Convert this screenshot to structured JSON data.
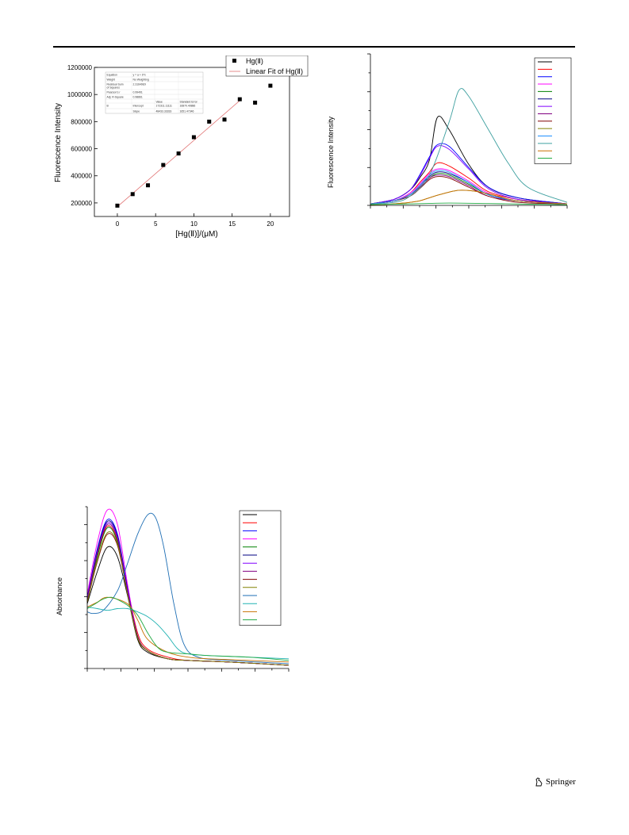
{
  "footer": {
    "publisher": "Springer"
  },
  "chart_data": [
    {
      "type": "scatter",
      "ylabel": "Fluorescence Intensity",
      "xlabel": "[Hg(Ⅱ)]/(μM)",
      "xlim": [
        -3,
        22.5
      ],
      "ylim": [
        100000,
        1200000
      ],
      "x_ticks": [
        0,
        5,
        10,
        15,
        20
      ],
      "y_ticks": [
        200000,
        400000,
        600000,
        800000,
        1000000,
        1200000
      ],
      "x_tick_labels": [
        "0",
        "5",
        "10",
        "15",
        "20"
      ],
      "y_tick_labels": [
        "200000",
        "400000",
        "600000",
        "800000",
        "1000000",
        "1200000"
      ],
      "legend_position": "top-right",
      "legend": [
        "Hg(Ⅱ)",
        "Linear Fit of Hg(Ⅱ)"
      ],
      "series": [
        {
          "name": "Hg(Ⅱ)",
          "x": [
            0,
            2,
            4,
            6,
            8,
            10,
            12,
            14,
            16,
            18,
            20
          ],
          "y": [
            180000,
            265000,
            330000,
            480000,
            565000,
            685000,
            800000,
            815000,
            965000,
            940000,
            1065000
          ]
        }
      ],
      "fit_line": {
        "x": [
          0,
          16
        ],
        "y": [
          172000,
          955000
        ]
      },
      "stats_table": [
        [
          "Equation",
          "y = a + b*x",
          "",
          ""
        ],
        [
          "Weight",
          "No Weighting",
          "",
          ""
        ],
        [
          "Residual Sum of Squares",
          "2.31649E9",
          "",
          ""
        ],
        [
          "Pearson's r",
          "0.99491",
          "",
          ""
        ],
        [
          "Adj. R-Square",
          "0.98861",
          "",
          ""
        ],
        [
          "",
          "",
          "Value",
          "Standard Error"
        ],
        [
          "B",
          "Intercept",
          "172311.11111",
          "16870.40886"
        ],
        [
          "",
          "Slope",
          "48433.33333",
          "1651.47346"
        ]
      ]
    },
    {
      "type": "line",
      "ylabel": "Fluorescence Intensity",
      "xlim": [
        0,
        1
      ],
      "ylim": [
        0,
        1
      ],
      "grid": false,
      "legend_position": "top-right",
      "colors": [
        "#000000",
        "#ff0000",
        "#0000ff",
        "#ff00ff",
        "#008000",
        "#000080",
        "#8000ff",
        "#800080",
        "#800000",
        "#808000",
        "#1e90ff",
        "#3fa0a0",
        "#c87000",
        "#22aa44"
      ],
      "series": [
        {
          "x": [
            0.0,
            0.12,
            0.2,
            0.25,
            0.3,
            0.34,
            0.4,
            0.5,
            0.6,
            0.75,
            1.0
          ],
          "y": [
            0.01,
            0.04,
            0.1,
            0.18,
            0.3,
            0.58,
            0.5,
            0.27,
            0.12,
            0.05,
            0.01
          ]
        },
        {
          "x": [
            0.0,
            0.12,
            0.2,
            0.25,
            0.3,
            0.34,
            0.4,
            0.5,
            0.6,
            0.75,
            1.0
          ],
          "y": [
            0.01,
            0.03,
            0.08,
            0.15,
            0.22,
            0.28,
            0.26,
            0.18,
            0.09,
            0.04,
            0.01
          ]
        },
        {
          "x": [
            0.0,
            0.12,
            0.2,
            0.25,
            0.3,
            0.34,
            0.4,
            0.5,
            0.6,
            0.75,
            1.0
          ],
          "y": [
            0.01,
            0.04,
            0.1,
            0.2,
            0.32,
            0.4,
            0.39,
            0.25,
            0.12,
            0.05,
            0.01
          ]
        },
        {
          "x": [
            0.0,
            0.12,
            0.2,
            0.25,
            0.3,
            0.34,
            0.4,
            0.5,
            0.6,
            0.75,
            1.0
          ],
          "y": [
            0.01,
            0.03,
            0.08,
            0.14,
            0.21,
            0.24,
            0.23,
            0.16,
            0.08,
            0.03,
            0.01
          ]
        },
        {
          "x": [
            0.0,
            0.12,
            0.2,
            0.25,
            0.3,
            0.34,
            0.4,
            0.5,
            0.6,
            0.75,
            1.0
          ],
          "y": [
            0.01,
            0.03,
            0.07,
            0.12,
            0.18,
            0.21,
            0.2,
            0.14,
            0.07,
            0.03,
            0.01
          ]
        },
        {
          "x": [
            0.0,
            0.12,
            0.2,
            0.25,
            0.3,
            0.34,
            0.4,
            0.5,
            0.6,
            0.75,
            1.0
          ],
          "y": [
            0.01,
            0.03,
            0.07,
            0.13,
            0.19,
            0.22,
            0.21,
            0.15,
            0.07,
            0.03,
            0.01
          ]
        },
        {
          "x": [
            0.0,
            0.12,
            0.2,
            0.25,
            0.3,
            0.34,
            0.4,
            0.5,
            0.6,
            0.75,
            1.0
          ],
          "y": [
            0.01,
            0.04,
            0.1,
            0.19,
            0.31,
            0.39,
            0.37,
            0.24,
            0.11,
            0.04,
            0.01
          ]
        },
        {
          "x": [
            0.0,
            0.12,
            0.2,
            0.25,
            0.3,
            0.34,
            0.4,
            0.5,
            0.6,
            0.75,
            1.0
          ],
          "y": [
            0.01,
            0.03,
            0.07,
            0.12,
            0.18,
            0.2,
            0.19,
            0.13,
            0.06,
            0.03,
            0.01
          ]
        },
        {
          "x": [
            0.0,
            0.12,
            0.2,
            0.25,
            0.3,
            0.34,
            0.4,
            0.5,
            0.6,
            0.75,
            1.0
          ],
          "y": [
            0.01,
            0.03,
            0.06,
            0.11,
            0.17,
            0.19,
            0.18,
            0.12,
            0.06,
            0.02,
            0.01
          ]
        },
        {
          "x": [
            0.0,
            0.12,
            0.2,
            0.25,
            0.3,
            0.35,
            0.45,
            0.55,
            0.65,
            0.75,
            1.0
          ],
          "y": [
            0.0,
            0.01,
            0.02,
            0.03,
            0.05,
            0.07,
            0.1,
            0.09,
            0.06,
            0.03,
            0.01
          ]
        },
        {
          "x": [
            0.0,
            0.12,
            0.2,
            0.25,
            0.3,
            0.34,
            0.4,
            0.5,
            0.6,
            0.75,
            1.0
          ],
          "y": [
            0.01,
            0.03,
            0.07,
            0.13,
            0.2,
            0.23,
            0.22,
            0.15,
            0.07,
            0.03,
            0.01
          ]
        },
        {
          "x": [
            0.0,
            0.12,
            0.2,
            0.3,
            0.4,
            0.45,
            0.5,
            0.6,
            0.7,
            0.8,
            1.0
          ],
          "y": [
            0.01,
            0.02,
            0.06,
            0.2,
            0.55,
            0.76,
            0.72,
            0.5,
            0.28,
            0.12,
            0.02
          ]
        },
        {
          "x": [
            0.0,
            0.12,
            0.2,
            0.25,
            0.3,
            0.35,
            0.45,
            0.55,
            0.65,
            0.75,
            1.0
          ],
          "y": [
            0.0,
            0.01,
            0.02,
            0.03,
            0.05,
            0.07,
            0.1,
            0.09,
            0.06,
            0.03,
            0.01
          ]
        },
        {
          "x": [
            0.0,
            0.2,
            0.4,
            0.6,
            0.8,
            1.0
          ],
          "y": [
            0.005,
            0.01,
            0.015,
            0.012,
            0.008,
            0.004
          ]
        }
      ]
    },
    {
      "type": "line",
      "ylabel": "Absorbance",
      "xlim": [
        0,
        1
      ],
      "ylim": [
        0,
        1
      ],
      "grid": false,
      "legend_position": "top-right",
      "colors": [
        "#000000",
        "#ff0000",
        "#0000ff",
        "#ff00ff",
        "#008000",
        "#000080",
        "#8000ff",
        "#800080",
        "#800000",
        "#808000",
        "#1e6eb4",
        "#20b2b2",
        "#c87000",
        "#22aa44"
      ],
      "series": [
        {
          "x": [
            0.0,
            0.05,
            0.1,
            0.15,
            0.2,
            0.25,
            0.3,
            0.4,
            0.5,
            0.7,
            1.0
          ],
          "y": [
            0.4,
            0.6,
            0.75,
            0.69,
            0.45,
            0.18,
            0.1,
            0.06,
            0.05,
            0.04,
            0.02
          ]
        },
        {
          "x": [
            0.0,
            0.05,
            0.1,
            0.15,
            0.2,
            0.25,
            0.3,
            0.4,
            0.5,
            0.7,
            1.0
          ],
          "y": [
            0.42,
            0.7,
            0.88,
            0.79,
            0.5,
            0.22,
            0.12,
            0.07,
            0.05,
            0.04,
            0.02
          ]
        },
        {
          "x": [
            0.0,
            0.05,
            0.1,
            0.15,
            0.2,
            0.25,
            0.3,
            0.4,
            0.5,
            0.7,
            1.0
          ],
          "y": [
            0.44,
            0.74,
            0.92,
            0.83,
            0.5,
            0.2,
            0.11,
            0.06,
            0.05,
            0.04,
            0.02
          ]
        },
        {
          "x": [
            0.0,
            0.05,
            0.1,
            0.15,
            0.2,
            0.25,
            0.3,
            0.4,
            0.5,
            0.7,
            1.0
          ],
          "y": [
            0.46,
            0.78,
            0.98,
            0.89,
            0.52,
            0.2,
            0.11,
            0.06,
            0.05,
            0.04,
            0.02
          ]
        },
        {
          "x": [
            0.0,
            0.05,
            0.1,
            0.15,
            0.2,
            0.25,
            0.3,
            0.4,
            0.5,
            0.7,
            1.0
          ],
          "y": [
            0.42,
            0.69,
            0.87,
            0.78,
            0.47,
            0.2,
            0.11,
            0.06,
            0.05,
            0.04,
            0.02
          ]
        },
        {
          "x": [
            0.0,
            0.05,
            0.1,
            0.15,
            0.2,
            0.25,
            0.3,
            0.4,
            0.5,
            0.7,
            1.0
          ],
          "y": [
            0.44,
            0.73,
            0.91,
            0.82,
            0.49,
            0.2,
            0.11,
            0.06,
            0.05,
            0.04,
            0.02
          ]
        },
        {
          "x": [
            0.0,
            0.05,
            0.1,
            0.15,
            0.2,
            0.25,
            0.3,
            0.4,
            0.5,
            0.7,
            1.0
          ],
          "y": [
            0.43,
            0.72,
            0.9,
            0.81,
            0.48,
            0.2,
            0.11,
            0.06,
            0.05,
            0.04,
            0.02
          ]
        },
        {
          "x": [
            0.0,
            0.05,
            0.1,
            0.15,
            0.2,
            0.25,
            0.3,
            0.4,
            0.5,
            0.7,
            1.0
          ],
          "y": [
            0.42,
            0.71,
            0.89,
            0.8,
            0.47,
            0.2,
            0.11,
            0.06,
            0.05,
            0.04,
            0.02
          ]
        },
        {
          "x": [
            0.0,
            0.05,
            0.1,
            0.15,
            0.2,
            0.25,
            0.3,
            0.4,
            0.5,
            0.7,
            1.0
          ],
          "y": [
            0.41,
            0.66,
            0.83,
            0.76,
            0.46,
            0.19,
            0.11,
            0.06,
            0.05,
            0.04,
            0.02
          ]
        },
        {
          "x": [
            0.0,
            0.05,
            0.1,
            0.15,
            0.2,
            0.25,
            0.3,
            0.4,
            0.5,
            0.7,
            1.0
          ],
          "y": [
            0.41,
            0.67,
            0.84,
            0.77,
            0.46,
            0.19,
            0.11,
            0.06,
            0.05,
            0.04,
            0.02
          ]
        },
        {
          "x": [
            0.0,
            0.03,
            0.08,
            0.15,
            0.2,
            0.25,
            0.3,
            0.34,
            0.38,
            0.43,
            0.48,
            0.55,
            0.7,
            1.0
          ],
          "y": [
            0.35,
            0.34,
            0.36,
            0.48,
            0.65,
            0.83,
            0.95,
            0.93,
            0.75,
            0.4,
            0.15,
            0.07,
            0.05,
            0.03
          ]
        },
        {
          "x": [
            0.0,
            0.05,
            0.1,
            0.15,
            0.2,
            0.25,
            0.3,
            0.35,
            0.4,
            0.45,
            0.5,
            0.6,
            0.8,
            1.0
          ],
          "y": [
            0.38,
            0.37,
            0.36,
            0.37,
            0.37,
            0.35,
            0.32,
            0.27,
            0.2,
            0.12,
            0.09,
            0.08,
            0.07,
            0.06
          ]
        },
        {
          "x": [
            0.0,
            0.05,
            0.1,
            0.2,
            0.25,
            0.3,
            0.4,
            0.5,
            0.6,
            0.8,
            1.0
          ],
          "y": [
            0.38,
            0.41,
            0.44,
            0.4,
            0.3,
            0.18,
            0.1,
            0.07,
            0.06,
            0.05,
            0.04
          ]
        },
        {
          "x": [
            0.0,
            0.04,
            0.08,
            0.12,
            0.16,
            0.2,
            0.25,
            0.3,
            0.35,
            0.4,
            0.5,
            0.6,
            0.8,
            1.0
          ],
          "y": [
            0.37,
            0.4,
            0.43,
            0.44,
            0.42,
            0.39,
            0.33,
            0.22,
            0.13,
            0.1,
            0.09,
            0.08,
            0.07,
            0.05
          ]
        }
      ]
    }
  ]
}
